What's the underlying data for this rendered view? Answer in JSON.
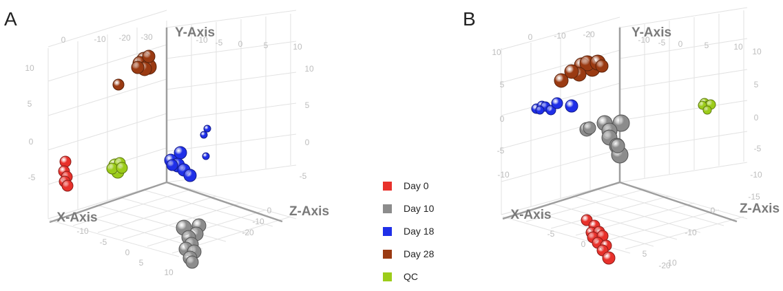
{
  "legend": {
    "items": [
      {
        "label": "Day 0",
        "color": "#e8312b"
      },
      {
        "label": "Day 10",
        "color": "#8c8c8c"
      },
      {
        "label": "Day 18",
        "color": "#1f2fe8"
      },
      {
        "label": "Day 28",
        "color": "#9a3a12"
      },
      {
        "label": "QC",
        "color": "#9ccc1a"
      }
    ]
  },
  "chart_data": [
    {
      "type": "scatter",
      "panel": "A",
      "dimensions": "3d",
      "axes": {
        "x": "X-Axis",
        "y": "Y-Axis",
        "z": "Z-Axis"
      },
      "tick_labels": {
        "x_top": [
          "0",
          "-10",
          "-20",
          "-30"
        ],
        "z_top": [
          "-10",
          "-5",
          "0",
          "5",
          "10"
        ],
        "y_left": [
          "10",
          "5",
          "0",
          "-5"
        ],
        "y_right": [
          "10",
          "5",
          "0",
          "-5"
        ],
        "x_bottom": [
          "-10",
          "-5",
          "0",
          "5",
          "10"
        ],
        "z_bottom": [
          "0",
          "-10",
          "-20"
        ]
      },
      "series": [
        {
          "name": "Day 0",
          "color": "#e8312b",
          "points": 5
        },
        {
          "name": "Day 10",
          "color": "#8c8c8c",
          "points": 9
        },
        {
          "name": "Day 18",
          "color": "#1f2fe8",
          "points": 9
        },
        {
          "name": "Day 28",
          "color": "#9a3a12",
          "points": 7
        },
        {
          "name": "QC",
          "color": "#9ccc1a",
          "points": 5
        }
      ]
    },
    {
      "type": "scatter",
      "panel": "B",
      "dimensions": "3d",
      "axes": {
        "x": "X-Axis",
        "y": "Y-Axis",
        "z": "Z-Axis"
      },
      "tick_labels": {
        "x_top": [
          "0",
          "-10",
          "-20"
        ],
        "z_top": [
          "-10",
          "-5",
          "0",
          "5",
          "10"
        ],
        "y_left": [
          "10",
          "5",
          "0",
          "-5",
          "-10"
        ],
        "y_right": [
          "10",
          "5",
          "0",
          "-5",
          "-10",
          "-15"
        ],
        "x_bottom": [
          "-5",
          "0",
          "5",
          "10"
        ],
        "z_bottom": [
          "0",
          "-10",
          "-20"
        ]
      },
      "series": [
        {
          "name": "Day 0",
          "color": "#e8312b",
          "points": 10
        },
        {
          "name": "Day 10",
          "color": "#8c8c8c",
          "points": 9
        },
        {
          "name": "Day 18",
          "color": "#1f2fe8",
          "points": 7
        },
        {
          "name": "Day 28",
          "color": "#9a3a12",
          "points": 8
        },
        {
          "name": "QC",
          "color": "#9ccc1a",
          "points": 5
        }
      ]
    }
  ],
  "panels": {
    "a": "A",
    "b": "B"
  }
}
